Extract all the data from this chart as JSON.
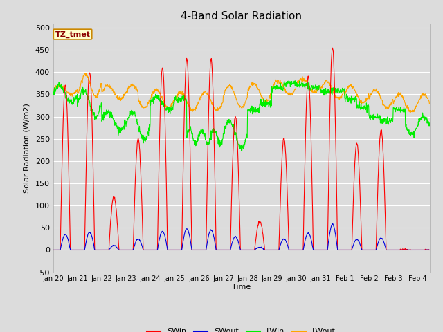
{
  "title": "4-Band Solar Radiation",
  "xlabel": "Time",
  "ylabel": "Solar Radiation (W/m2)",
  "ylim": [
    -50,
    510
  ],
  "yticks": [
    -50,
    0,
    50,
    100,
    150,
    200,
    250,
    300,
    350,
    400,
    450,
    500
  ],
  "annotation_text": "TZ_tmet",
  "annotation_color": "#8B0000",
  "annotation_bg": "#FFFFCC",
  "annotation_border": "#CC8800",
  "line_colors": {
    "SWin": "#FF0000",
    "SWout": "#0000DD",
    "LWin": "#00EE00",
    "LWout": "#FFA500"
  },
  "background_color": "#DCDCDC",
  "plot_bg_color": "#DCDCDC",
  "grid_color": "#FFFFFF",
  "n_days": 15.5,
  "dt_hours": 0.25,
  "date_labels": [
    "Jan 20",
    "Jan 21",
    "Jan 22",
    "Jan 23",
    "Jan 24",
    "Jan 25",
    "Jan 26",
    "Jan 27",
    "Jan 28",
    "Jan 29",
    "Jan 30",
    "Jan 31",
    "Feb 1",
    "Feb 2",
    "Feb 3",
    "Feb 4"
  ]
}
